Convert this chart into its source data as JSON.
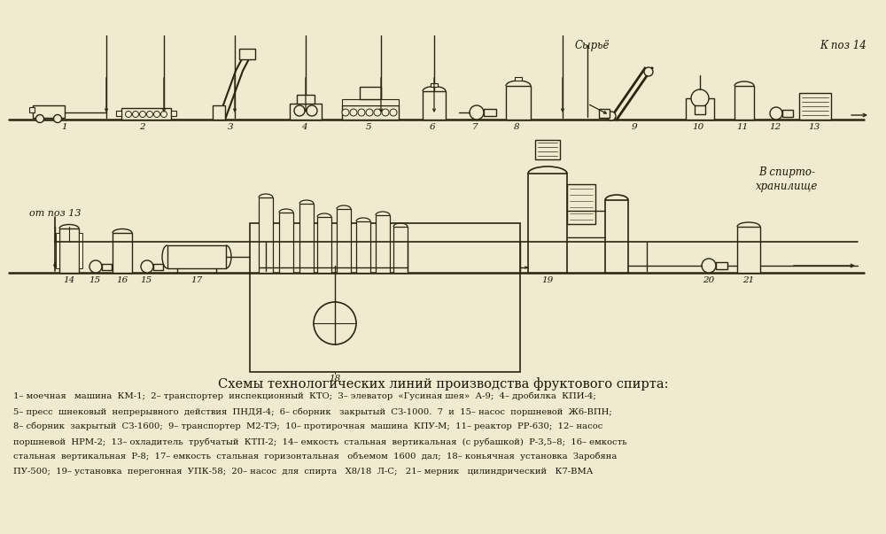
{
  "bg_color": "#f0ead0",
  "line_color": "#2a2510",
  "text_color": "#1a1505",
  "title": "Схемы технологических линий производства фруктового спирта:",
  "title_fontsize": 10.5,
  "caption": [
    "1– моечная   машина  КМ-1;  2– транспортер  инспекционный  КТО;  3– элеватор  «Гусиная шея»  А-9;  4– дробилка  КПИ-4;",
    "5– пресс  шнековый  непрерывного  действия  ПНДЯ-4;  6– сборник   закрытый  СЗ-1000.  7  и  15– насос  поршневой  Ж6-ВПН;",
    "8– сборник  закрытый  СЗ-1600;  9– транспортер  М2-ТЭ;  10– протирочная  машина  КПУ-М;  11– реактор  РР-630;  12– насос",
    "поршневой  НРМ-2;  13– охладитель  трубчатый  КТП-2;  14– емкость  стальная  вертикальная  (с рубашкой)  Р-3,5–8;  16– емкость",
    "стальная  вертикальная  Р-8;  17– емкость  стальная  горизонтальная   объемом  1600  дал;  18– коньячная  установка  Заробяна",
    "ПУ-500;  19– установка  перегонная  УПК-58;  20– насос  для  спирта   Х8/18  Л-С;   21– мерник   цилиндрический   К7-ВМА"
  ],
  "top_label_syryo": "Сырьё",
  "top_label_kpoz": "К поз 14",
  "bottom_label_ot": "от поз 13",
  "bottom_label_spirit1": "В спирто-",
  "bottom_label_spirit2": "хранилище"
}
